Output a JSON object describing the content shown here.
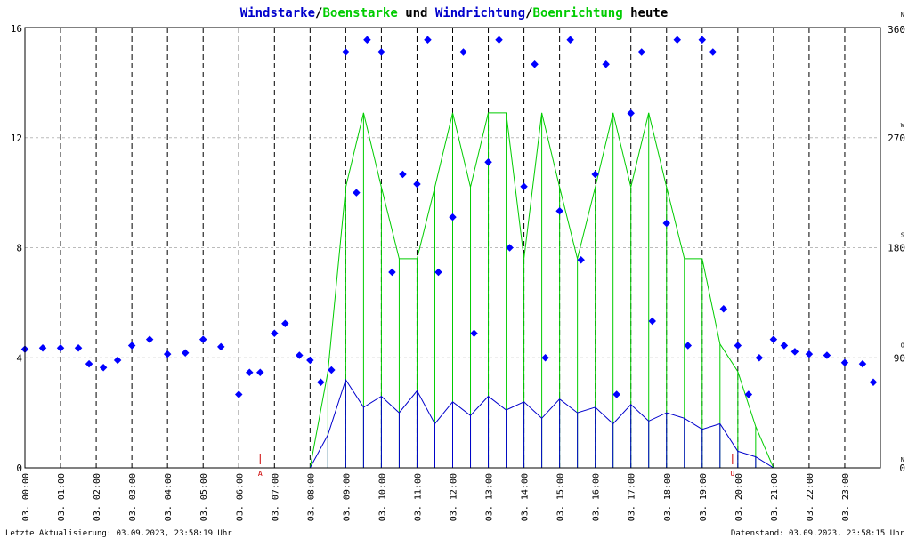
{
  "title": {
    "parts": [
      {
        "text": "Windstarke",
        "color": "#0000cc"
      },
      {
        "text": "/",
        "color": "#000000"
      },
      {
        "text": "Boenstarke",
        "color": "#00cc00"
      },
      {
        "text": " und ",
        "color": "#000000"
      },
      {
        "text": "Windrichtung",
        "color": "#0000cc"
      },
      {
        "text": "/",
        "color": "#000000"
      },
      {
        "text": "Boenrichtung",
        "color": "#00cc00"
      },
      {
        "text": " heute",
        "color": "#000000"
      }
    ]
  },
  "footer": {
    "left": "Letzte Aktualisierung: 03.09.2023, 23:58:19 Uhr",
    "right": "Datenstand: 03.09.2023, 23:58:15 Uhr"
  },
  "markers": [
    {
      "label": "A",
      "hour": 6.6,
      "color": "#cc0000"
    },
    {
      "label": "U",
      "hour": 19.85,
      "color": "#cc0000"
    }
  ],
  "colors": {
    "wind": "#0000cc",
    "gust": "#00cc00",
    "direction_point": "#0000ff",
    "gust_direction_point": "#00dd00",
    "grid": "#bbbbbb",
    "hour_line": "#000000"
  },
  "chart_data": {
    "type": "line",
    "title": "Windstarke/Boenstarke und Windrichtung/Boenrichtung heute",
    "xlabel": "",
    "ylabel": "",
    "xlim": [
      0,
      24
    ],
    "ylim": [
      0,
      16
    ],
    "y2lim": [
      0,
      360
    ],
    "x_tick_labels": [
      "03. 00:00",
      "03. 01:00",
      "03. 02:00",
      "03. 03:00",
      "03. 04:00",
      "03. 05:00",
      "03. 06:00",
      "03. 07:00",
      "03. 08:00",
      "03. 09:00",
      "03. 10:00",
      "03. 11:00",
      "03. 12:00",
      "03. 13:00",
      "03. 14:00",
      "03. 15:00",
      "03. 16:00",
      "03. 17:00",
      "03. 18:00",
      "03. 19:00",
      "03. 20:00",
      "03. 21:00",
      "03. 22:00",
      "03. 23:00"
    ],
    "y_ticks": [
      "0",
      "4",
      "8",
      "12",
      "16"
    ],
    "y2_ticks": [
      "0",
      "90",
      "180",
      "270",
      "360"
    ],
    "y2_compass": [
      "N",
      "O",
      "S",
      "W",
      "N"
    ],
    "series": [
      {
        "name": "Windstarke",
        "color": "#0000cc",
        "x": [
          0,
          1,
          2,
          3,
          4,
          5,
          6,
          7,
          8,
          8.5,
          9,
          9.5,
          10,
          10.5,
          11,
          11.5,
          12,
          12.5,
          13,
          13.5,
          14,
          14.5,
          15,
          15.5,
          16,
          16.5,
          17,
          17.5,
          18,
          18.5,
          19,
          19.5,
          20,
          20.5,
          21,
          21.5,
          22,
          22.5,
          23,
          23.8
        ],
        "values": [
          0,
          0,
          0,
          0,
          0,
          0,
          0,
          0,
          0,
          1.2,
          3.2,
          2.2,
          2.6,
          2.0,
          2.8,
          1.6,
          2.4,
          1.9,
          2.6,
          2.1,
          2.4,
          1.8,
          2.5,
          2.0,
          2.2,
          1.6,
          2.3,
          1.7,
          2.0,
          1.8,
          1.4,
          1.6,
          0.6,
          0.4,
          0,
          0,
          0,
          0,
          0,
          0
        ]
      },
      {
        "name": "Boenstarke",
        "color": "#00cc00",
        "x": [
          0,
          1,
          2,
          3,
          4,
          5,
          6,
          7,
          8,
          8.5,
          9,
          9.5,
          10,
          10.5,
          11,
          11.5,
          12,
          12.5,
          13,
          13.5,
          14,
          14.5,
          15,
          15.5,
          16,
          16.5,
          17,
          17.5,
          18,
          18.5,
          19,
          19.5,
          20,
          20.5,
          21,
          21.5,
          22,
          22.5,
          23,
          23.8
        ],
        "values": [
          0,
          0,
          0,
          0,
          0,
          0,
          0,
          0,
          0,
          3.5,
          10.2,
          12.9,
          10.2,
          7.6,
          7.6,
          10.2,
          12.9,
          10.2,
          12.9,
          12.9,
          7.6,
          12.9,
          10.2,
          7.6,
          10.2,
          12.9,
          10.2,
          12.9,
          10.2,
          7.6,
          7.6,
          4.5,
          3.5,
          1.5,
          0,
          0,
          0,
          0,
          0,
          0
        ]
      },
      {
        "name": "Windrichtung",
        "color": "#0000ff",
        "x": [
          0,
          0.5,
          1,
          1.5,
          1.8,
          2.2,
          2.6,
          3,
          3.5,
          4,
          4.5,
          5,
          5.5,
          6,
          6.3,
          6.6,
          7,
          7.3,
          7.7,
          8,
          8.3,
          8.6,
          9,
          9.3,
          9.6,
          10,
          10.3,
          10.6,
          11,
          11.3,
          11.6,
          12,
          12.3,
          12.6,
          13,
          13.3,
          13.6,
          14,
          14.3,
          14.6,
          15,
          15.3,
          15.6,
          16,
          16.3,
          16.6,
          17,
          17.3,
          17.6,
          18,
          18.3,
          18.6,
          19,
          19.3,
          19.6,
          20,
          20.3,
          20.6,
          21,
          21.3,
          21.6,
          22,
          22.5,
          23,
          23.5,
          23.8
        ],
        "values": [
          97,
          98,
          98,
          98,
          85,
          82,
          88,
          100,
          105,
          93,
          94,
          105,
          99,
          60,
          78,
          78,
          110,
          118,
          92,
          88,
          70,
          80,
          340,
          225,
          350,
          340,
          160,
          240,
          232,
          350,
          160,
          205,
          340,
          110,
          250,
          350,
          180,
          230,
          330,
          90,
          210,
          350,
          170,
          240,
          330,
          60,
          290,
          340,
          120,
          200,
          350,
          100,
          350,
          340,
          130,
          100,
          60,
          90,
          105,
          100,
          95,
          93,
          92,
          86,
          85,
          70
        ]
      }
    ]
  }
}
